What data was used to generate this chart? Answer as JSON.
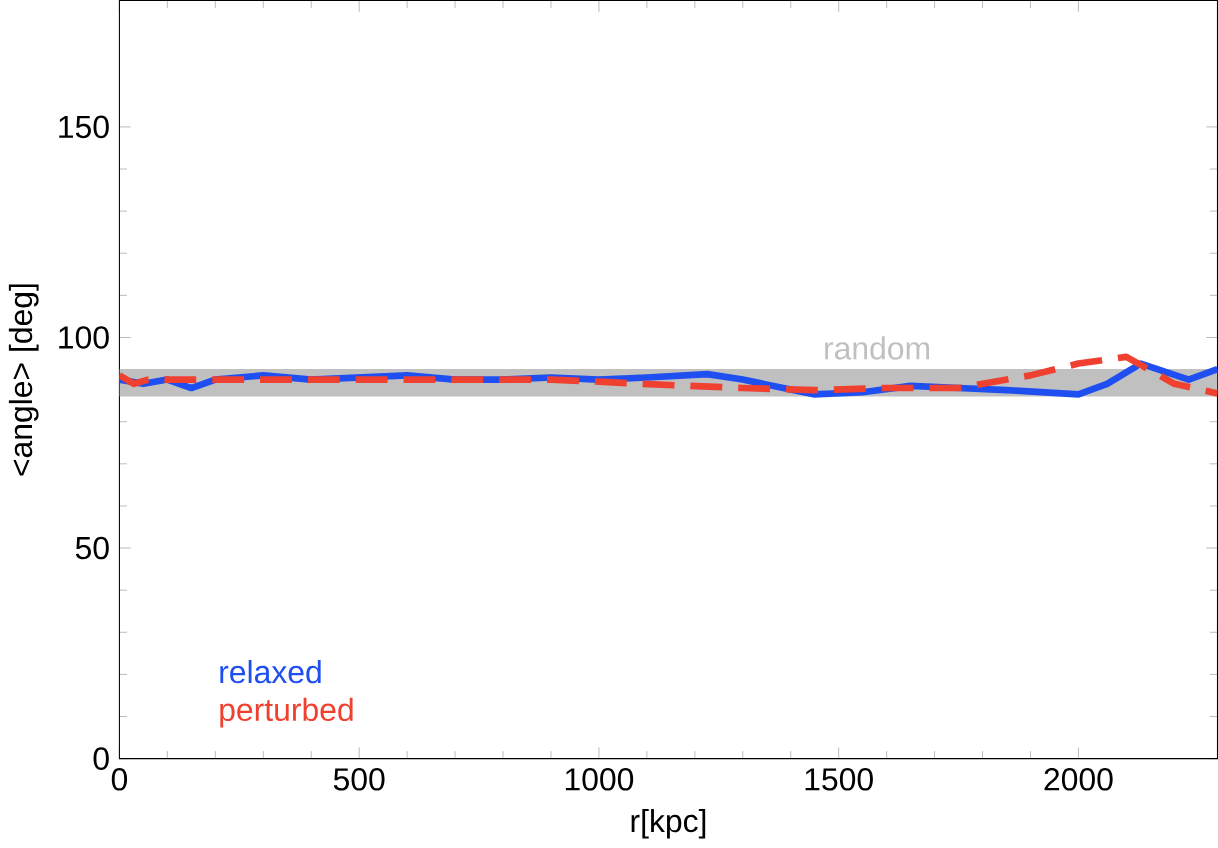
{
  "chart_data": {
    "type": "line",
    "xlabel": "r[kpc]",
    "ylabel": "<angle> [deg]",
    "xlim": [
      0,
      2290
    ],
    "ylim": [
      0,
      180
    ],
    "xticks": [
      0,
      500,
      1000,
      1500,
      2000
    ],
    "yticks": [
      0,
      50,
      100,
      150
    ],
    "legend": "bottom left",
    "grid": false,
    "bands": [
      {
        "axis": "y",
        "from": 86,
        "to": 92.5,
        "label": "random",
        "color": "#c0c0c0"
      }
    ],
    "series": [
      {
        "name": "relaxed",
        "color": "#1f4ff0",
        "line_style": "solid",
        "x": [
          0,
          50,
          100,
          150,
          200,
          300,
          400,
          500,
          600,
          700,
          800,
          900,
          1000,
          1100,
          1226,
          1300,
          1448,
          1550,
          1650,
          1750,
          1850,
          2000,
          2060,
          2130,
          2230,
          2290
        ],
        "values": [
          90,
          89,
          90,
          88,
          90,
          91,
          90,
          90.5,
          91,
          90,
          90,
          90.5,
          90,
          90.5,
          91.3,
          90,
          86.5,
          87,
          88.5,
          88,
          87.5,
          86.5,
          89,
          93.8,
          90,
          92.5
        ]
      },
      {
        "name": "perturbed",
        "color": "#f04030",
        "line_style": "dashed",
        "x": [
          0,
          30,
          60,
          100,
          200,
          300,
          400,
          500,
          600,
          700,
          800,
          900,
          1000,
          1087,
          1300,
          1450,
          1600,
          1750,
          1900,
          2000,
          2100,
          2200,
          2290
        ],
        "values": [
          91,
          89,
          90,
          90,
          90,
          90,
          90,
          90,
          90,
          90,
          90,
          90,
          89.5,
          89,
          88,
          87.5,
          88,
          88,
          91,
          93.8,
          95.4,
          89,
          86.7
        ]
      }
    ]
  }
}
